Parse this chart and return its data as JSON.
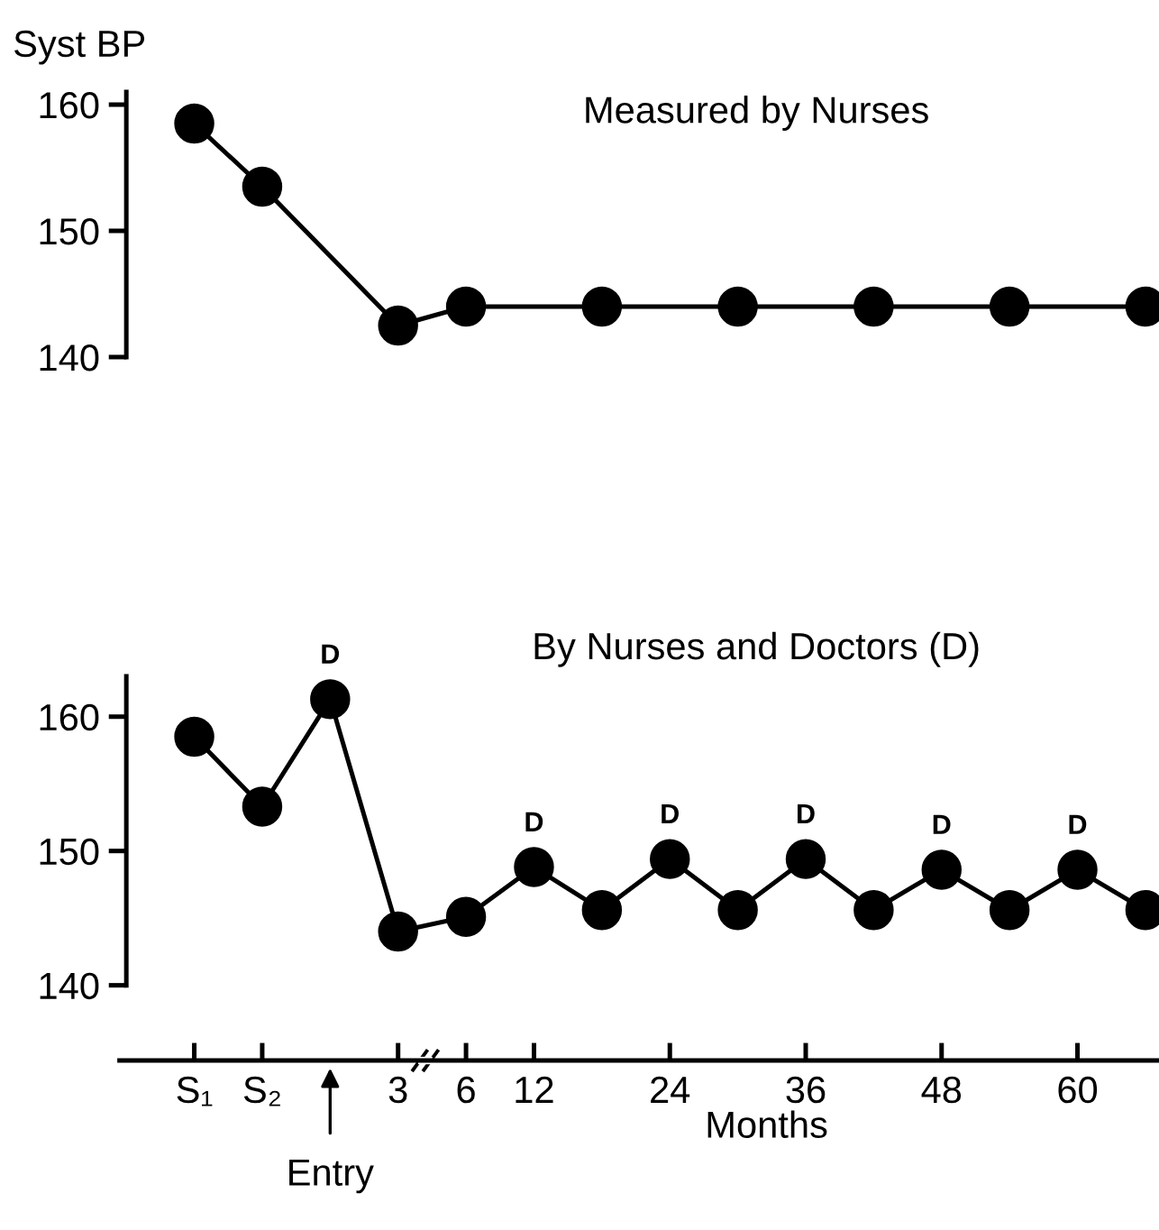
{
  "chart_data": [
    {
      "type": "line",
      "title": "Measured by Nurses",
      "ylabel": "Syst BP",
      "series": [
        {
          "color": "#000000",
          "values": [
            158.5,
            153.5,
            null,
            142.5,
            144,
            null,
            144,
            null,
            144,
            null,
            144,
            null,
            144,
            null,
            144
          ]
        }
      ],
      "ylim": [
        140,
        161
      ],
      "yticks": [
        140,
        150,
        160
      ],
      "tick_labels": "y",
      "marker": "circle",
      "line_style": "solid",
      "grid": false,
      "legend": false
    },
    {
      "type": "line",
      "title": "By Nurses and Doctors (D)",
      "xlabel": "Months",
      "categories": [
        "S₁",
        "S₂",
        null,
        "3",
        "6",
        "12",
        null,
        "24",
        null,
        "36",
        null,
        "48",
        null,
        "60",
        null
      ],
      "series": [
        {
          "color": "#000000",
          "values": [
            158.5,
            153.3,
            161.3,
            144,
            145.1,
            148.8,
            145.6,
            149.4,
            145.6,
            149.4,
            145.6,
            148.6,
            145.6,
            148.6,
            145.6
          ],
          "value_labels": [
            null,
            null,
            "D",
            null,
            null,
            "D",
            null,
            "D",
            null,
            "D",
            null,
            "D",
            null,
            "D",
            null
          ]
        }
      ],
      "ylim": [
        134.4,
        163
      ],
      "yticks": [
        140,
        150,
        160
      ],
      "annotations": [
        "Entry"
      ],
      "marker": "circle",
      "line_style": "solid",
      "grid": false,
      "legend": false
    }
  ]
}
